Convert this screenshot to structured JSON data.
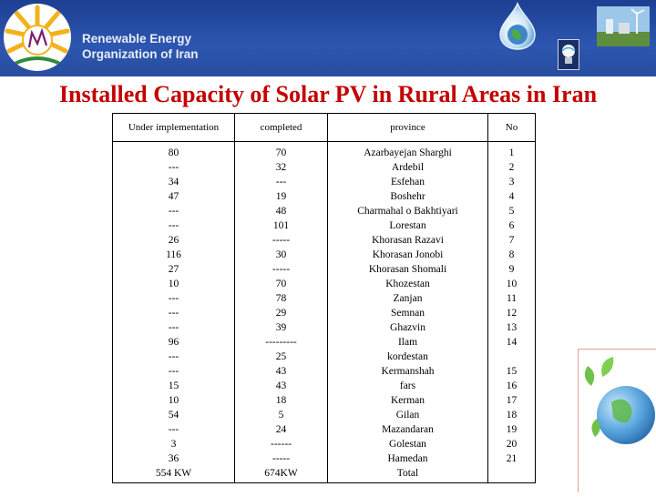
{
  "header": {
    "org_line1": "Renewable Energy",
    "org_line2": "Organization of Iran"
  },
  "title": "Installed Capacity of Solar PV in Rural Areas in Iran",
  "table": {
    "headers": [
      "Under implementation",
      "completed",
      "province",
      "No"
    ],
    "under_implementation": [
      "80",
      "---",
      "34",
      "47",
      "---",
      "---",
      "26",
      "116",
      "27",
      "10",
      "---",
      "---",
      "---",
      "96",
      "---",
      "---",
      "15",
      "10",
      "54",
      "---",
      "3",
      "36",
      "554 KW"
    ],
    "completed": [
      "70",
      "32",
      "---",
      "19",
      "48",
      "101",
      "-----",
      "30",
      "-----",
      "70",
      "78",
      "29",
      "39",
      "---------",
      "25",
      "43",
      "43",
      "18",
      "5",
      "24",
      "------",
      "-----",
      "674KW"
    ],
    "province": [
      "Azarbayejan Sharghi",
      "Ardebil",
      "Esfehan",
      "Boshehr",
      "Charmahal o Bakhtiyari",
      "Lorestan",
      "Khorasan Razavi",
      "Khorasan Jonobi",
      "Khorasan Shomali",
      "Khozestan",
      "Zanjan",
      "Semnan",
      "Ghazvin",
      "Ilam",
      "kordestan",
      "Kermanshah",
      "fars",
      "Kerman",
      "Gilan",
      "Mazandaran",
      "Golestan",
      "Hamedan",
      "Total"
    ],
    "no": [
      "1",
      "2",
      "3",
      "4",
      "5",
      "6",
      "7",
      "8",
      "9",
      "10",
      "11",
      "12",
      "13",
      "14",
      "",
      "15",
      "16",
      "17",
      "18",
      "19",
      "20",
      "21",
      ""
    ]
  },
  "colors": {
    "banner": "#2c56b0",
    "title": "#c40000",
    "org_text": "#e8edf7"
  },
  "icons": [
    "sun-logo-icon",
    "water-droplet-globe-icon",
    "energy-bulb-icon",
    "globe-leaves-icon"
  ]
}
